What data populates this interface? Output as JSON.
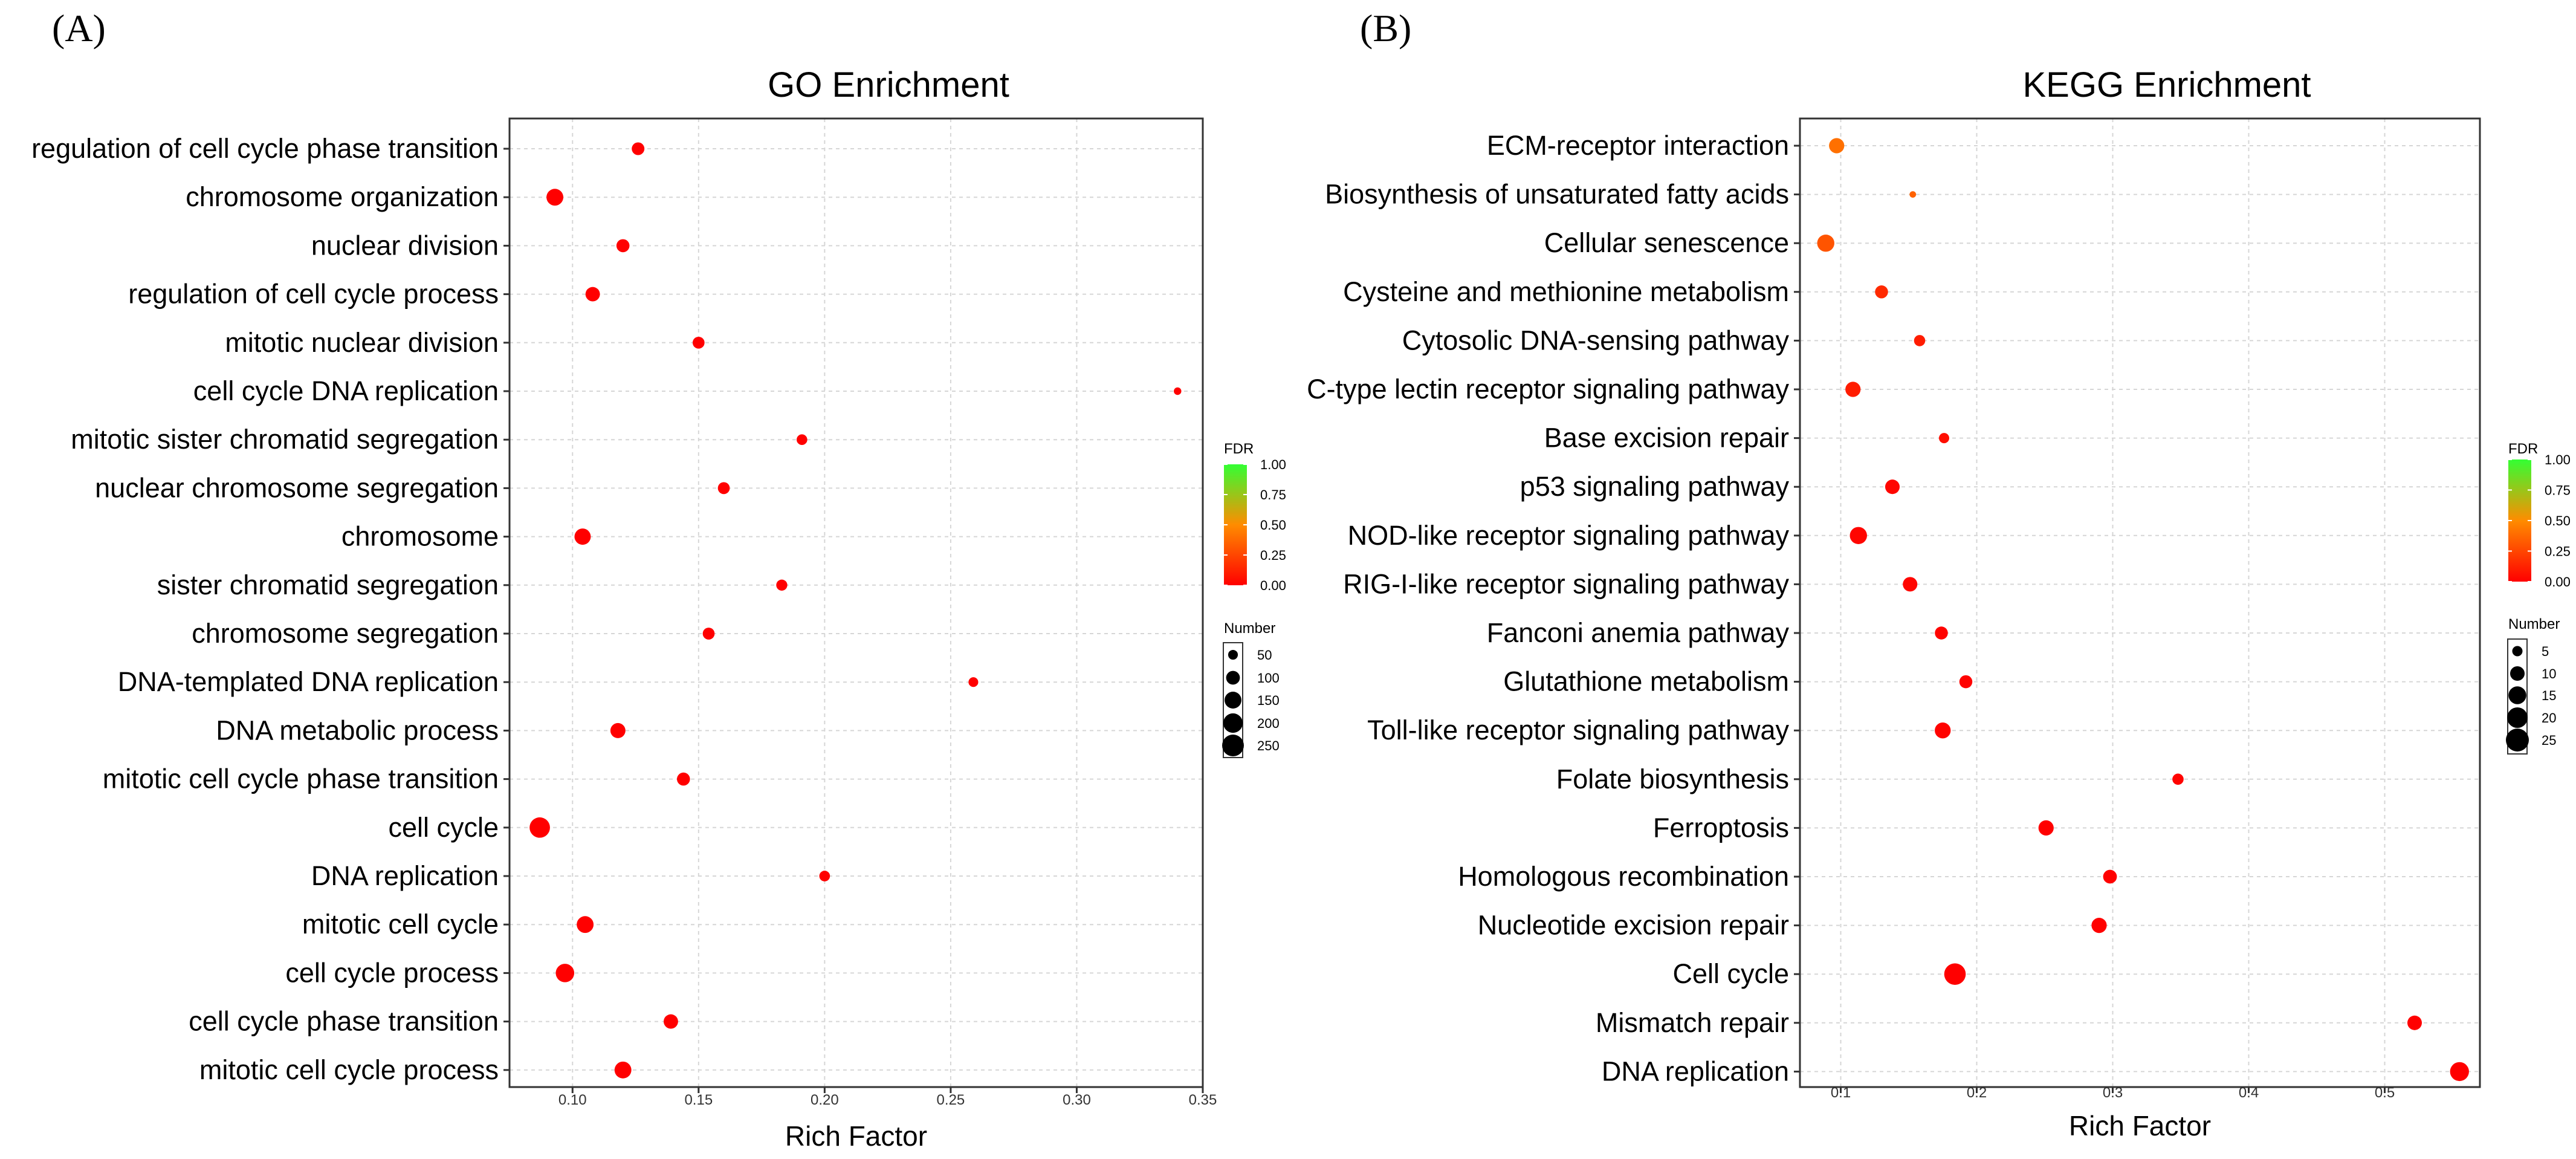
{
  "panels": [
    "(A)",
    "(B)"
  ],
  "chart_data": [
    {
      "type": "scatter",
      "title": "GO Enrichment",
      "xlabel": "Rich Factor",
      "ylabel": "",
      "xlim": [
        0.075,
        0.35
      ],
      "xticks": [
        0.1,
        0.15,
        0.2,
        0.25,
        0.3,
        0.35
      ],
      "xtick_labels": [
        "0.10",
        "0.15",
        "0.20",
        "0.25",
        "0.30",
        "0.35"
      ],
      "grid": true,
      "color_legend": {
        "title": "FDR",
        "ticks": [
          "1.00",
          "0.75",
          "0.50",
          "0.25",
          "0.00"
        ],
        "low_color": "#ff0000",
        "mid_color": "#ff8c00",
        "high_color": "#33ff33"
      },
      "size_legend": {
        "title": "Number",
        "values": [
          50,
          100,
          150,
          200,
          250
        ],
        "labels": [
          "50",
          "100",
          "150",
          "200",
          "250"
        ]
      },
      "size_max": 250,
      "categories": [
        "regulation of cell cycle phase transition",
        "chromosome organization",
        "nuclear division",
        "regulation of cell cycle process",
        "mitotic nuclear division",
        "cell cycle DNA replication",
        "mitotic sister chromatid segregation",
        "nuclear chromosome segregation",
        "chromosome",
        "sister chromatid segregation",
        "chromosome segregation",
        "DNA-templated DNA replication",
        "DNA metabolic process",
        "mitotic cell cycle phase transition",
        "cell cycle",
        "DNA replication",
        "mitotic cell cycle",
        "cell cycle process",
        "cell cycle phase transition",
        "mitotic cell cycle process"
      ],
      "x": [
        0.126,
        0.093,
        0.12,
        0.108,
        0.15,
        0.34,
        0.191,
        0.16,
        0.104,
        0.183,
        0.154,
        0.259,
        0.118,
        0.144,
        0.087,
        0.2,
        0.105,
        0.097,
        0.139,
        0.12
      ],
      "number": [
        85,
        150,
        90,
        110,
        75,
        30,
        60,
        75,
        140,
        65,
        75,
        50,
        120,
        90,
        220,
        60,
        150,
        180,
        110,
        150
      ],
      "fdr": [
        0,
        0,
        0,
        0,
        0,
        0,
        0,
        0,
        0,
        0,
        0,
        0,
        0,
        0,
        0,
        0,
        0,
        0,
        0,
        0
      ]
    },
    {
      "type": "scatter",
      "title": "KEGG Enrichment",
      "xlabel": "Rich Factor",
      "ylabel": "",
      "xlim": [
        0.07,
        0.57
      ],
      "xticks": [
        0.1,
        0.2,
        0.3,
        0.4,
        0.5
      ],
      "xtick_labels": [
        "0.1",
        "0.2",
        "0.3",
        "0.4",
        "0.5"
      ],
      "grid": true,
      "color_legend": {
        "title": "FDR",
        "ticks": [
          "1.00",
          "0.75",
          "0.50",
          "0.25",
          "0.00"
        ],
        "low_color": "#ff0000",
        "mid_color": "#ff8c00",
        "high_color": "#33ff33"
      },
      "size_legend": {
        "title": "Number",
        "values": [
          5,
          10,
          15,
          20,
          25
        ],
        "labels": [
          "5",
          "10",
          "15",
          "20",
          "25"
        ]
      },
      "size_max": 25,
      "categories": [
        "ECM-receptor interaction",
        "Biosynthesis of unsaturated fatty acids",
        "Cellular senescence",
        "Cysteine and methionine metabolism",
        "Cytosolic DNA-sensing pathway",
        "C-type lectin receptor signaling pathway",
        "Base excision repair",
        "p53 signaling pathway",
        "NOD-like receptor signaling pathway",
        "RIG-I-like receptor signaling pathway",
        "Fanconi anemia pathway",
        "Glutathione metabolism",
        "Toll-like receptor signaling pathway",
        "Folate biosynthesis",
        "Ferroptosis",
        "Homologous recombination",
        "Nucleotide excision repair",
        "Cell cycle",
        "Mismatch repair",
        "DNA replication"
      ],
      "x": [
        0.097,
        0.153,
        0.089,
        0.13,
        0.158,
        0.109,
        0.176,
        0.138,
        0.113,
        0.151,
        0.174,
        0.192,
        0.175,
        0.348,
        0.251,
        0.298,
        0.29,
        0.184,
        0.522,
        0.555
      ],
      "number": [
        11,
        2,
        14,
        8,
        6,
        11,
        5,
        10,
        14,
        10,
        8,
        8,
        12,
        6,
        11,
        9,
        11,
        22,
        10,
        17
      ],
      "fdr": [
        0.4,
        0.35,
        0.3,
        0.15,
        0.1,
        0.1,
        0.05,
        0.02,
        0.02,
        0.02,
        0.01,
        0.01,
        0.01,
        0.01,
        0.005,
        0.005,
        0.005,
        0.0,
        0.0,
        0.0
      ]
    }
  ]
}
